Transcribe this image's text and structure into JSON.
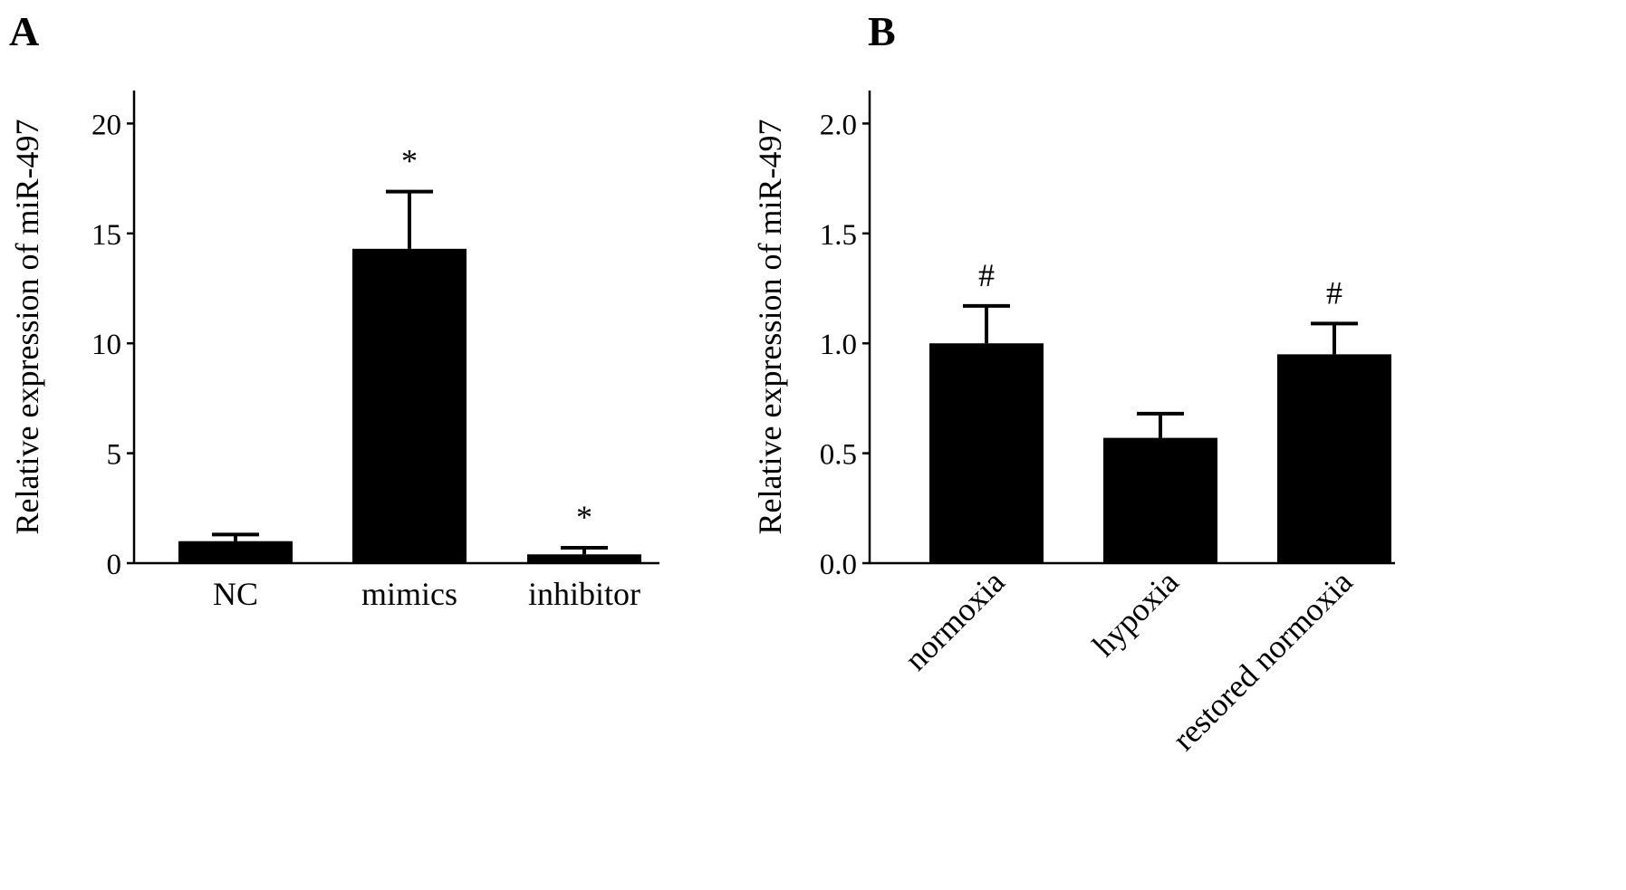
{
  "panels": [
    {
      "letter": "A"
    },
    {
      "letter": "B"
    }
  ],
  "chart_data": [
    {
      "type": "bar",
      "panel": "A",
      "categories": [
        "NC",
        "mimics",
        "inhibitor"
      ],
      "values": [
        1.0,
        14.3,
        0.4
      ],
      "errors": [
        0.3,
        2.6,
        0.3
      ],
      "annotations": [
        "",
        "*",
        "*"
      ],
      "xlabel": "",
      "ylabel": "Relative expression of miR-497",
      "ylim": [
        0,
        21.5
      ],
      "yticks": [
        0,
        5,
        10,
        15,
        20
      ],
      "ytick_labels": [
        "0",
        "5",
        "10",
        "15",
        "20"
      ],
      "bar_color": "#000000",
      "grid": false,
      "legend": "none"
    },
    {
      "type": "bar",
      "panel": "B",
      "categories": [
        "normoxia",
        "hypoxia",
        "restored normoxia"
      ],
      "values": [
        1.0,
        0.57,
        0.95
      ],
      "errors": [
        0.17,
        0.11,
        0.14
      ],
      "annotations": [
        "#",
        "",
        "#"
      ],
      "xlabel": "",
      "ylabel": "Relative expression of miR-497",
      "ylim": [
        0,
        2.15
      ],
      "yticks": [
        0.0,
        0.5,
        1.0,
        1.5,
        2.0
      ],
      "ytick_labels": [
        "0.0",
        "0.5",
        "1.0",
        "1.5",
        "2.0"
      ],
      "bar_color": "#000000",
      "grid": false,
      "legend": "none"
    }
  ]
}
